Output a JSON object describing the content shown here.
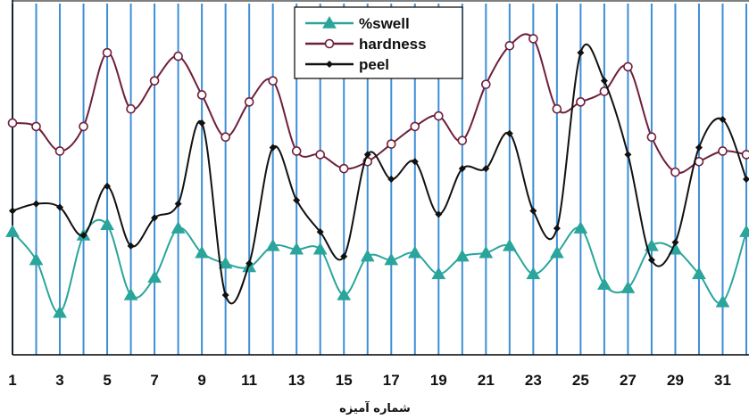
{
  "chart_data": {
    "type": "line",
    "title": "",
    "xlabel": "شماره آمیزه",
    "ylabel": "",
    "x": [
      1,
      2,
      3,
      4,
      5,
      6,
      7,
      8,
      9,
      10,
      11,
      12,
      13,
      14,
      15,
      16,
      17,
      18,
      19,
      20,
      21,
      22,
      23,
      24,
      25,
      26,
      27,
      28,
      29,
      30,
      31,
      32
    ],
    "x_tick_labels": [
      "1",
      "3",
      "5",
      "7",
      "9",
      "11",
      "13",
      "15",
      "17",
      "19",
      "21",
      "23",
      "25",
      "27",
      "29",
      "31"
    ],
    "xlim": [
      1,
      32
    ],
    "ylim": [
      0,
      100
    ],
    "grid": "vertical",
    "grid_color": "#3e8ed6",
    "legend_position": "top-center",
    "series": [
      {
        "name": "%swell",
        "color": "#2aa59c",
        "marker": "triangle",
        "values": [
          35,
          27,
          12,
          34,
          37,
          17,
          22,
          36,
          29,
          26,
          25,
          31,
          30,
          30,
          17,
          28,
          27,
          29,
          23,
          28,
          29,
          31,
          23,
          29,
          36,
          20,
          19,
          31,
          30,
          23,
          15,
          35
        ]
      },
      {
        "name": "hardness",
        "color": "#6e1f3c",
        "marker": "circle",
        "values": [
          66,
          65,
          58,
          65,
          86,
          70,
          78,
          85,
          74,
          62,
          72,
          78,
          58,
          57,
          53,
          55,
          60,
          65,
          68,
          61,
          77,
          88,
          90,
          70,
          72,
          75,
          82,
          62,
          52,
          55,
          58,
          57
        ]
      },
      {
        "name": "peel",
        "color": "#111111",
        "marker": "diamond",
        "values": [
          41,
          43,
          42,
          34,
          48,
          31,
          39,
          43,
          66,
          17,
          26,
          59,
          44,
          35,
          28,
          57,
          50,
          55,
          40,
          53,
          53,
          63,
          41,
          36,
          86,
          78,
          57,
          27,
          32,
          59,
          67,
          50
        ]
      }
    ]
  }
}
